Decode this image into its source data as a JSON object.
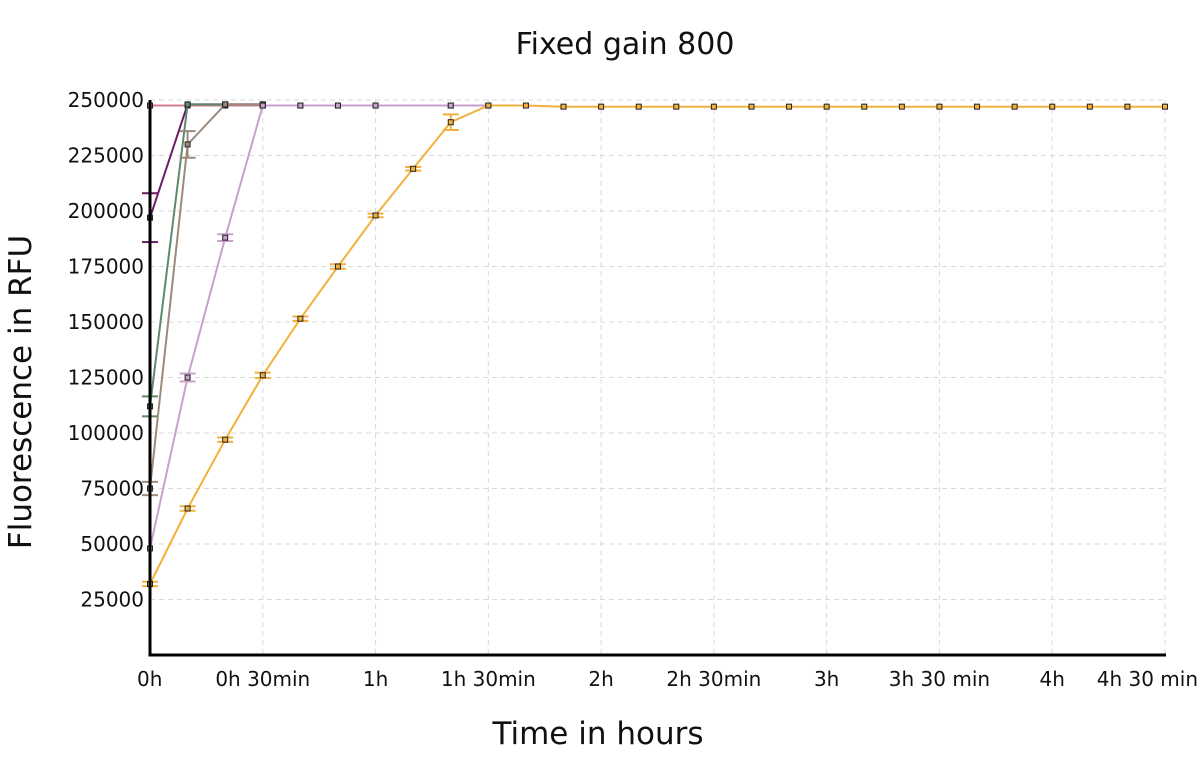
{
  "chart_data": {
    "type": "line",
    "title": "Fixed gain 800",
    "xlabel": "Time in hours",
    "ylabel": "Fluorescence in RFU",
    "xlim": [
      0,
      270
    ],
    "ylim": [
      0,
      250000
    ],
    "x_unit": "minutes",
    "y_ticks": [
      25000,
      50000,
      75000,
      100000,
      125000,
      150000,
      175000,
      200000,
      225000,
      250000
    ],
    "x_ticks": [
      {
        "value": 0,
        "label": "0h"
      },
      {
        "value": 30,
        "label": "0h 30min"
      },
      {
        "value": 60,
        "label": "1h"
      },
      {
        "value": 90,
        "label": "1h 30min"
      },
      {
        "value": 120,
        "label": "2h"
      },
      {
        "value": 150,
        "label": "2h 30min"
      },
      {
        "value": 180,
        "label": "3h"
      },
      {
        "value": 210,
        "label": "3h 30 min"
      },
      {
        "value": 240,
        "label": "4h"
      },
      {
        "value": 270,
        "label": "4h 30 min"
      }
    ],
    "grid": true,
    "legend": "none",
    "series": [
      {
        "color": "#d07f92",
        "x": [
          0,
          10,
          20,
          30,
          40,
          50,
          60,
          80
        ],
        "y": [
          247500,
          247500,
          247500,
          247500,
          247500,
          247500,
          247500,
          247500
        ],
        "err": [
          0,
          0,
          0,
          0,
          0,
          0,
          0,
          0
        ]
      },
      {
        "color": "#6b1c66",
        "x": [
          0,
          10,
          20,
          30
        ],
        "y": [
          197000,
          248000,
          248000,
          248000
        ],
        "err": [
          11000,
          0,
          0,
          0
        ]
      },
      {
        "color": "#5d8a6a",
        "x": [
          0,
          10,
          20,
          30
        ],
        "y": [
          112000,
          248000,
          248000,
          248000
        ],
        "err": [
          4500,
          0,
          0,
          0
        ]
      },
      {
        "color": "#9c8a7c",
        "x": [
          0,
          10,
          20,
          30
        ],
        "y": [
          75000,
          230000,
          248000,
          248000
        ],
        "err": [
          3000,
          6000,
          0,
          0
        ]
      },
      {
        "color": "#c9a0cc",
        "x": [
          0,
          10,
          20,
          30,
          40,
          50,
          60,
          80,
          90
        ],
        "y": [
          48000,
          125000,
          188000,
          247500,
          247500,
          247500,
          247500,
          247500,
          247500
        ],
        "err": [
          0,
          1800,
          1500,
          0,
          0,
          0,
          0,
          0,
          0
        ]
      },
      {
        "color": "#f2b13c",
        "x": [
          0,
          10,
          20,
          30,
          40,
          50,
          60,
          70,
          80,
          90,
          100,
          110,
          120,
          130,
          140,
          150,
          160,
          170,
          180,
          190,
          200,
          210,
          220,
          230,
          240,
          250,
          260,
          270
        ],
        "y": [
          32000,
          66000,
          97000,
          126000,
          151500,
          175000,
          198000,
          219000,
          240000,
          247500,
          247500,
          247000,
          247000,
          247000,
          247000,
          247000,
          247000,
          247000,
          247000,
          247000,
          247000,
          247000,
          247000,
          247000,
          247000,
          247000,
          247000,
          247000
        ],
        "err": [
          1000,
          1000,
          1000,
          1200,
          1000,
          1000,
          800,
          800,
          3500,
          0,
          0,
          0,
          0,
          0,
          0,
          0,
          0,
          0,
          0,
          0,
          0,
          0,
          0,
          0,
          0,
          0,
          0,
          0
        ]
      }
    ]
  }
}
